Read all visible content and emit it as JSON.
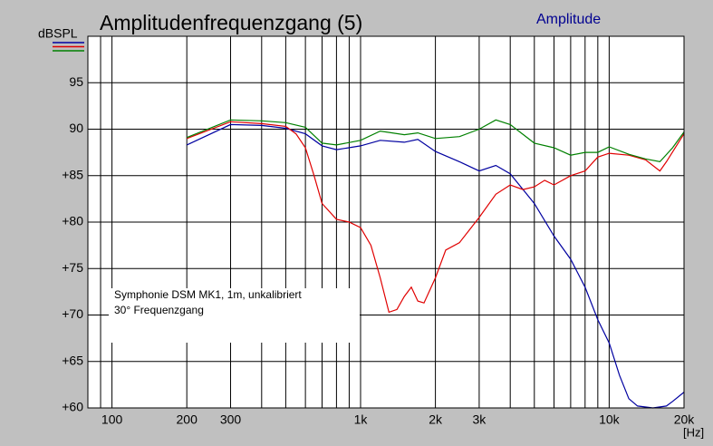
{
  "chart_data": {
    "type": "line",
    "title": "Amplitudenfrequenzgang (5)",
    "subtitle": "Amplitude",
    "y_label": "dBSPL",
    "x_label": "[Hz]",
    "annotation": [
      "Symphonie DSM MK1, 1m, unkalibriert",
      "30° Frequenzgang"
    ],
    "log_x": true,
    "grid": true,
    "xlim": [
      80,
      20000
    ],
    "ylim": [
      60,
      100
    ],
    "xticks": [
      100,
      200,
      300,
      {
        "value": 1000,
        "label": "1k"
      },
      {
        "value": 2000,
        "label": "2k"
      },
      {
        "value": 3000,
        "label": "3k"
      },
      {
        "value": 10000,
        "label": "10k"
      },
      {
        "value": 20000,
        "label": "20k"
      }
    ],
    "xminor": [
      90,
      400,
      500,
      600,
      700,
      800,
      900,
      4000,
      5000,
      6000,
      7000,
      8000,
      9000
    ],
    "yticks": [
      {
        "value": 60,
        "label": "+60"
      },
      {
        "value": 65,
        "label": "+65"
      },
      {
        "value": 70,
        "label": "+70"
      },
      {
        "value": 75,
        "label": "+75"
      },
      {
        "value": 80,
        "label": "+80"
      },
      {
        "value": 85,
        "label": "+85"
      },
      90,
      95,
      {
        "value": 100,
        "label": null
      }
    ],
    "series": [
      {
        "color": "#0000a0",
        "x": [
          200,
          300,
          400,
          500,
          600,
          700,
          800,
          1000,
          1200,
          1500,
          1700,
          2000,
          2500,
          3000,
          3500,
          4000,
          5000,
          6000,
          7000,
          8000,
          9000,
          10000,
          11000,
          12000,
          13000,
          15000,
          17000,
          18000,
          20000
        ],
        "values": [
          88.3,
          90.5,
          90.4,
          90.1,
          89.5,
          88.2,
          87.8,
          88.2,
          88.8,
          88.6,
          88.9,
          87.6,
          86.5,
          85.5,
          86.1,
          85.2,
          82,
          78.5,
          76,
          73,
          69.5,
          67,
          63.5,
          61,
          60.2,
          60,
          60.2,
          60.7,
          61.7
        ]
      },
      {
        "color": "#e00000",
        "x": [
          200,
          300,
          400,
          500,
          550,
          600,
          650,
          700,
          800,
          900,
          1000,
          1100,
          1200,
          1300,
          1400,
          1500,
          1600,
          1700,
          1800,
          2000,
          2200,
          2500,
          3000,
          3500,
          4000,
          4500,
          5000,
          5500,
          6000,
          7000,
          8000,
          9000,
          10000,
          12000,
          14000,
          16000,
          17000,
          20000
        ],
        "values": [
          89,
          90.8,
          90.6,
          90.3,
          89.5,
          88,
          85,
          82,
          80.3,
          80,
          79.4,
          77.5,
          74,
          70.3,
          70.6,
          72,
          73,
          71.5,
          71.3,
          74,
          77,
          77.8,
          80.5,
          83,
          84,
          83.5,
          83.8,
          84.5,
          84,
          85,
          85.5,
          87,
          87.4,
          87.2,
          86.7,
          85.5,
          86.5,
          89.5
        ]
      },
      {
        "color": "#008000",
        "x": [
          200,
          300,
          400,
          500,
          600,
          700,
          800,
          1000,
          1200,
          1500,
          1700,
          2000,
          2500,
          3000,
          3500,
          4000,
          5000,
          6000,
          7000,
          8000,
          9000,
          10000,
          12000,
          14000,
          16000,
          18000,
          20000
        ],
        "values": [
          89.1,
          91,
          90.9,
          90.7,
          90.2,
          88.5,
          88.3,
          88.8,
          89.8,
          89.4,
          89.6,
          89,
          89.2,
          90,
          91,
          90.5,
          88.5,
          88,
          87.2,
          87.5,
          87.5,
          88.1,
          87.3,
          86.8,
          86.5,
          88,
          89.7
        ]
      }
    ]
  }
}
